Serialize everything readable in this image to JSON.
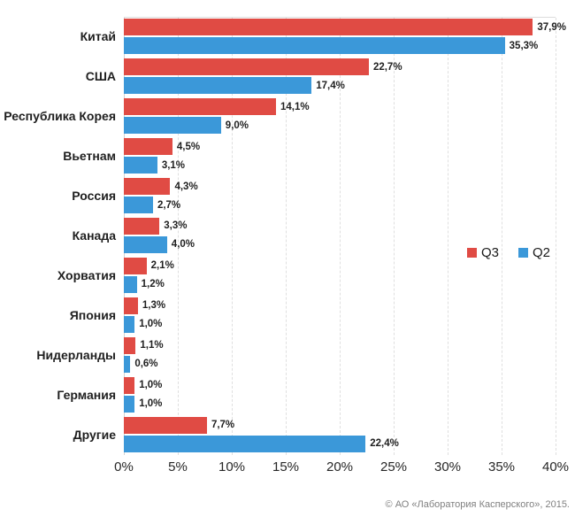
{
  "chart_data": {
    "type": "bar",
    "orientation": "horizontal",
    "categories": [
      "Китай",
      "США",
      "Республика Корея",
      "Вьетнам",
      "Россия",
      "Канада",
      "Хорватия",
      "Япония",
      "Нидерланды",
      "Германия",
      "Другие"
    ],
    "series": [
      {
        "name": "Q3",
        "color": "#e04b44",
        "values": [
          37.9,
          22.7,
          14.1,
          4.5,
          4.3,
          3.3,
          2.1,
          1.3,
          1.1,
          1.0,
          7.7
        ],
        "labels": [
          "37,9%",
          "22,7%",
          "14,1%",
          "4,5%",
          "4,3%",
          "3,3%",
          "2,1%",
          "1,3%",
          "1,1%",
          "1,0%",
          "7,7%"
        ]
      },
      {
        "name": "Q2",
        "color": "#3b98d9",
        "values": [
          35.3,
          17.4,
          9.0,
          3.1,
          2.7,
          4.0,
          1.2,
          1.0,
          0.6,
          1.0,
          22.4
        ],
        "labels": [
          "35,3%",
          "17,4%",
          "9,0%",
          "3,1%",
          "2,7%",
          "4,0%",
          "1,2%",
          "1,0%",
          "0,6%",
          "1,0%",
          "22,4%"
        ]
      }
    ],
    "xlim": [
      0,
      40
    ],
    "x_ticks": [
      "0%",
      "5%",
      "10%",
      "15%",
      "20%",
      "25%",
      "30%",
      "35%",
      "40%"
    ],
    "grid": "vertical-dashed",
    "legend_position": "middle-right"
  },
  "colors": {
    "q3": "#e04b44",
    "q2": "#3b98d9",
    "grid": "#dfdfdf",
    "text": "#1f1f1f",
    "footer_text": "#808080"
  },
  "footer": {
    "copyright": "© АО «Лаборатория Касперского», 2015."
  }
}
